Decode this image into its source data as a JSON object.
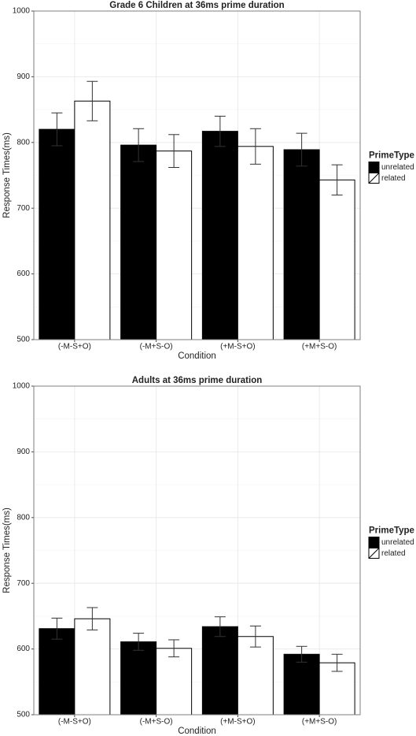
{
  "chart_data": [
    {
      "type": "bar",
      "title": "Grade 6 Children at 36ms prime duration",
      "x_label": "Condition",
      "y_label": "Response Times(ms)",
      "categories": [
        "(-M-S+O)",
        "(-M+S-O)",
        "(+M-S+O)",
        "(+M+S-O)"
      ],
      "series": [
        {
          "name": "unrelated",
          "color": "#000000",
          "values": [
            820,
            796,
            817,
            789
          ],
          "errors": [
            25,
            25,
            23,
            25
          ]
        },
        {
          "name": "related",
          "color": "#ffffff",
          "values": [
            863,
            787,
            794,
            743
          ],
          "errors": [
            30,
            25,
            27,
            23
          ]
        }
      ],
      "ylim": [
        500,
        1000
      ],
      "yticks": [
        500,
        600,
        700,
        800,
        900,
        1000
      ],
      "grid": true,
      "legend_title": "PrimeType",
      "legend": "right"
    },
    {
      "type": "bar",
      "title": "Adults at 36ms prime duration",
      "x_label": "Condition",
      "y_label": "Response Times(ms)",
      "categories": [
        "(-M-S+O)",
        "(-M+S-O)",
        "(+M-S+O)",
        "(+M+S-O)"
      ],
      "series": [
        {
          "name": "unrelated",
          "color": "#000000",
          "values": [
            631,
            611,
            634,
            592
          ],
          "errors": [
            16,
            13,
            15,
            12
          ]
        },
        {
          "name": "related",
          "color": "#ffffff",
          "values": [
            646,
            601,
            619,
            579
          ],
          "errors": [
            17,
            13,
            16,
            13
          ]
        }
      ],
      "ylim": [
        500,
        1000
      ],
      "yticks": [
        500,
        600,
        700,
        800,
        900,
        1000
      ],
      "grid": true,
      "legend_title": "PrimeType",
      "legend": "right"
    }
  ]
}
